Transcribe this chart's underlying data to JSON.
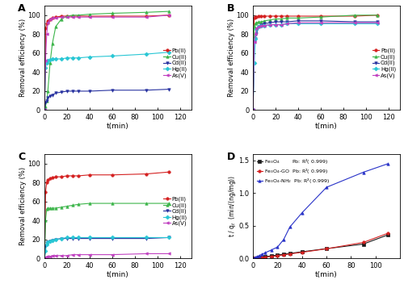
{
  "t": [
    0,
    1,
    2,
    3,
    5,
    7,
    10,
    15,
    20,
    25,
    30,
    40,
    60,
    90,
    110
  ],
  "A": {
    "Pb": [
      0,
      86,
      91,
      94,
      96,
      97,
      98,
      99,
      99,
      99,
      99,
      99,
      99,
      99,
      100
    ],
    "Cu": [
      0,
      4,
      10,
      20,
      50,
      70,
      88,
      96,
      99,
      100,
      100,
      101,
      102,
      103,
      104
    ],
    "Cd": [
      0,
      8,
      10,
      13,
      15,
      16,
      18,
      19,
      20,
      20,
      20,
      20,
      21,
      21,
      22
    ],
    "Hg": [
      0,
      45,
      50,
      52,
      53,
      54,
      54,
      54,
      55,
      55,
      55,
      56,
      57,
      59,
      61
    ],
    "As": [
      0,
      52,
      80,
      92,
      96,
      97,
      97,
      98,
      98,
      98,
      98,
      98,
      98,
      98,
      100
    ]
  },
  "B": {
    "Pb": [
      0,
      97,
      98,
      98,
      99,
      99,
      99,
      99,
      99,
      99,
      99,
      99,
      99,
      99,
      100
    ],
    "Cu": [
      0,
      88,
      91,
      92,
      93,
      93,
      94,
      95,
      96,
      96,
      97,
      97,
      98,
      100,
      100
    ],
    "Cd": [
      0,
      72,
      75,
      80,
      88,
      90,
      91,
      92,
      93,
      93,
      93,
      94,
      94,
      93,
      93
    ],
    "Hg": [
      0,
      50,
      75,
      85,
      88,
      89,
      89,
      90,
      90,
      90,
      91,
      91,
      91,
      91,
      91
    ],
    "As": [
      0,
      72,
      80,
      86,
      88,
      89,
      89,
      90,
      90,
      90,
      91,
      92,
      92,
      92,
      92
    ]
  },
  "C": {
    "Pb": [
      0,
      70,
      80,
      83,
      84,
      85,
      86,
      86,
      87,
      87,
      87,
      88,
      88,
      89,
      91
    ],
    "Cu": [
      0,
      40,
      52,
      53,
      53,
      53,
      53,
      54,
      55,
      56,
      57,
      58,
      58,
      58,
      58
    ],
    "Cd": [
      0,
      13,
      16,
      17,
      18,
      19,
      20,
      21,
      21,
      21,
      21,
      21,
      21,
      21,
      22
    ],
    "Hg": [
      0,
      8,
      15,
      17,
      18,
      19,
      20,
      21,
      22,
      22,
      22,
      22,
      22,
      22,
      22
    ],
    "As": [
      0,
      1,
      2,
      2,
      2,
      3,
      3,
      3,
      3,
      4,
      4,
      4,
      4,
      5,
      5
    ]
  },
  "D": {
    "t_vals": [
      0,
      1,
      2,
      3,
      5,
      7,
      10,
      15,
      20,
      25,
      30,
      40,
      60,
      90,
      110
    ],
    "Fe3O4_Pb": [
      0,
      0.003,
      0.006,
      0.009,
      0.014,
      0.019,
      0.027,
      0.04,
      0.052,
      0.065,
      0.077,
      0.102,
      0.15,
      0.22,
      0.36
    ],
    "Fe3O4GO_Pb": [
      0,
      0.002,
      0.004,
      0.006,
      0.01,
      0.014,
      0.02,
      0.03,
      0.041,
      0.055,
      0.068,
      0.094,
      0.148,
      0.245,
      0.385
    ],
    "Fe3O4NH2_Pb": [
      0,
      0.009,
      0.018,
      0.027,
      0.044,
      0.062,
      0.088,
      0.13,
      0.175,
      0.29,
      0.48,
      0.7,
      1.09,
      1.32,
      1.45
    ]
  },
  "colors": {
    "Pb": "#d42020",
    "Cu": "#3cb54a",
    "Cd": "#2832a0",
    "Hg": "#27c6d4",
    "As": "#c040c0"
  },
  "D_colors": {
    "Fe3O4": "#1a1a1a",
    "Fe3O4GO": "#d42020",
    "Fe3O4NH2": "#2832c8"
  },
  "xlim_ABC": [
    0,
    130
  ],
  "xlim_D": [
    0,
    120
  ],
  "ylim_ABC": [
    0,
    110
  ],
  "ylim_D": [
    0,
    1.6
  ],
  "xlabel": "t(min)",
  "ylabel_ABC": "Removal efficiency (%)",
  "ylabel_D": "t / qₜ  (min/(ng/mg))",
  "yticks_ABC": [
    0,
    20,
    40,
    60,
    80,
    100
  ],
  "yticks_D": [
    0.0,
    0.5,
    1.0,
    1.5
  ],
  "xticks_ABC": [
    0,
    20,
    40,
    60,
    80,
    100,
    120
  ],
  "xticks_D": [
    0,
    20,
    40,
    60,
    80,
    100
  ]
}
